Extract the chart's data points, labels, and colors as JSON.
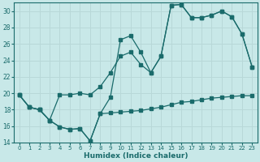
{
  "xlabel": "Humidex (Indice chaleur)",
  "bg_color": "#c8e8e8",
  "line_color": "#1a6b6b",
  "grid_color": "#b8d8d8",
  "xlim": [
    -0.5,
    23.5
  ],
  "ylim": [
    14,
    31
  ],
  "yticks": [
    14,
    16,
    18,
    20,
    22,
    24,
    26,
    28,
    30
  ],
  "xticks": [
    0,
    1,
    2,
    3,
    4,
    5,
    6,
    7,
    8,
    9,
    10,
    11,
    12,
    13,
    14,
    15,
    16,
    17,
    18,
    19,
    20,
    21,
    22,
    23
  ],
  "line1_x": [
    0,
    1,
    2,
    3,
    4,
    5,
    6,
    7,
    8,
    9,
    10,
    11,
    12,
    13,
    14,
    15,
    16,
    17,
    18,
    19,
    20,
    21,
    22,
    23
  ],
  "line1_y": [
    19.8,
    18.3,
    18.0,
    16.7,
    15.9,
    15.6,
    15.7,
    14.2,
    17.5,
    17.6,
    17.7,
    17.8,
    17.9,
    18.1,
    18.3,
    18.6,
    18.9,
    19.0,
    19.2,
    19.4,
    19.5,
    19.6,
    19.7,
    19.7
  ],
  "line2_x": [
    0,
    1,
    2,
    3,
    4,
    5,
    6,
    7,
    8,
    9,
    10,
    11,
    12,
    13,
    14,
    15,
    16,
    17,
    18,
    19,
    20,
    21,
    22,
    23
  ],
  "line2_y": [
    19.8,
    18.3,
    18.0,
    16.7,
    19.8,
    19.8,
    20.0,
    19.8,
    20.8,
    22.5,
    24.5,
    25.0,
    23.5,
    22.5,
    24.5,
    30.7,
    30.8,
    29.2,
    29.2,
    29.5,
    30.0,
    29.3,
    27.2,
    23.2
  ],
  "line3_x": [
    0,
    1,
    2,
    3,
    4,
    5,
    6,
    7,
    8,
    9,
    10,
    11,
    12,
    13,
    14,
    15,
    16,
    17,
    18,
    19,
    20,
    21,
    22,
    23
  ],
  "line3_y": [
    19.8,
    18.3,
    18.0,
    16.7,
    15.9,
    15.6,
    15.7,
    14.2,
    17.5,
    19.5,
    26.5,
    27.0,
    25.0,
    22.5,
    24.5,
    30.7,
    30.8,
    29.2,
    29.2,
    29.5,
    30.0,
    29.3,
    27.2,
    23.2
  ]
}
